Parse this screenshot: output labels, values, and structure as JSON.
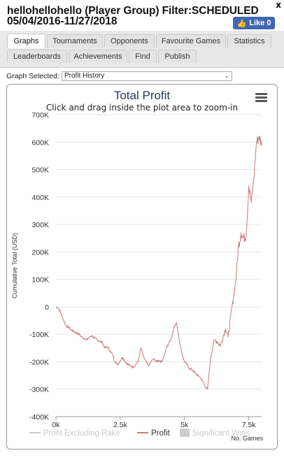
{
  "header": {
    "title_line1": "hellohellohello (Player Group) Filter:SCHEDULED",
    "title_line2": "05/04/2016-11/27/2018",
    "close_label": "x",
    "like_label": "Like 0"
  },
  "tabs_row1": [
    {
      "label": "Graphs",
      "active": true
    },
    {
      "label": "Tournaments",
      "active": false
    },
    {
      "label": "Opponents",
      "active": false
    },
    {
      "label": "Favourite Games",
      "active": false
    },
    {
      "label": "Statistics",
      "active": false
    }
  ],
  "tabs_row2": [
    {
      "label": "Leaderboards"
    },
    {
      "label": "Achievements"
    },
    {
      "label": "Find"
    },
    {
      "label": "Publish"
    }
  ],
  "graph_select": {
    "label": "Graph Selected:",
    "value": "Profit History"
  },
  "chart_data": {
    "type": "line",
    "title": "Total Profit",
    "subtitle": "Click and drag inside the plot area to zoom-in",
    "ylabel": "Cumulative Total (USD)",
    "xlabel": "No. Games",
    "ylim": [
      -400000,
      700000
    ],
    "xlim": [
      0,
      8000
    ],
    "yticks": [
      "700K",
      "600K",
      "500K",
      "400K",
      "300K",
      "200K",
      "100K",
      "0",
      "-100K",
      "-200K",
      "-300K",
      "-400K"
    ],
    "xticks": [
      "0k",
      "2.5k",
      "5k",
      "7.5k"
    ],
    "grid": true,
    "legend_position": "bottom",
    "series": [
      {
        "name": "Profit",
        "color": "#c97a7a",
        "points": [
          [
            0,
            0
          ],
          [
            100,
            -5000
          ],
          [
            200,
            -25000
          ],
          [
            300,
            -50000
          ],
          [
            400,
            -70000
          ],
          [
            500,
            -75000
          ],
          [
            600,
            -85000
          ],
          [
            700,
            -90000
          ],
          [
            800,
            -95000
          ],
          [
            900,
            -100000
          ],
          [
            1000,
            -110000
          ],
          [
            1100,
            -115000
          ],
          [
            1200,
            -120000
          ],
          [
            1300,
            -110000
          ],
          [
            1400,
            -105000
          ],
          [
            1500,
            -115000
          ],
          [
            1600,
            -120000
          ],
          [
            1700,
            -125000
          ],
          [
            1800,
            -130000
          ],
          [
            1900,
            -150000
          ],
          [
            2000,
            -145000
          ],
          [
            2100,
            -160000
          ],
          [
            2200,
            -175000
          ],
          [
            2300,
            -200000
          ],
          [
            2400,
            -210000
          ],
          [
            2500,
            -195000
          ],
          [
            2600,
            -185000
          ],
          [
            2700,
            -200000
          ],
          [
            2800,
            -210000
          ],
          [
            2900,
            -215000
          ],
          [
            3000,
            -220000
          ],
          [
            3100,
            -210000
          ],
          [
            3200,
            -200000
          ],
          [
            3300,
            -150000
          ],
          [
            3400,
            -180000
          ],
          [
            3500,
            -200000
          ],
          [
            3600,
            -215000
          ],
          [
            3700,
            -200000
          ],
          [
            3800,
            -190000
          ],
          [
            3900,
            -200000
          ],
          [
            4000,
            -195000
          ],
          [
            4100,
            -200000
          ],
          [
            4200,
            -180000
          ],
          [
            4300,
            -150000
          ],
          [
            4400,
            -130000
          ],
          [
            4500,
            -110000
          ],
          [
            4600,
            -70000
          ],
          [
            4700,
            -60000
          ],
          [
            4800,
            -120000
          ],
          [
            4900,
            -170000
          ],
          [
            5000,
            -200000
          ],
          [
            5100,
            -210000
          ],
          [
            5200,
            -225000
          ],
          [
            5300,
            -230000
          ],
          [
            5400,
            -240000
          ],
          [
            5500,
            -250000
          ],
          [
            5600,
            -255000
          ],
          [
            5700,
            -270000
          ],
          [
            5800,
            -290000
          ],
          [
            5900,
            -300000
          ],
          [
            6000,
            -200000
          ],
          [
            6100,
            -140000
          ],
          [
            6200,
            -120000
          ],
          [
            6300,
            -130000
          ],
          [
            6400,
            -140000
          ],
          [
            6500,
            -110000
          ],
          [
            6600,
            -80000
          ],
          [
            6700,
            -110000
          ],
          [
            6800,
            -30000
          ],
          [
            6900,
            30000
          ],
          [
            7000,
            100000
          ],
          [
            7100,
            220000
          ],
          [
            7200,
            270000
          ],
          [
            7300,
            250000
          ],
          [
            7400,
            260000
          ],
          [
            7500,
            440000
          ],
          [
            7600,
            380000
          ],
          [
            7700,
            470000
          ],
          [
            7800,
            600000
          ],
          [
            7900,
            620000
          ],
          [
            8000,
            590000
          ]
        ]
      }
    ],
    "legend": [
      {
        "name": "Profit Excluding Rake",
        "color": "#cccccc",
        "kind": "line"
      },
      {
        "name": "Profit",
        "color": "#c97a7a",
        "kind": "line"
      },
      {
        "name": "Significant Wins",
        "color": "#cccccc",
        "kind": "box"
      }
    ]
  }
}
